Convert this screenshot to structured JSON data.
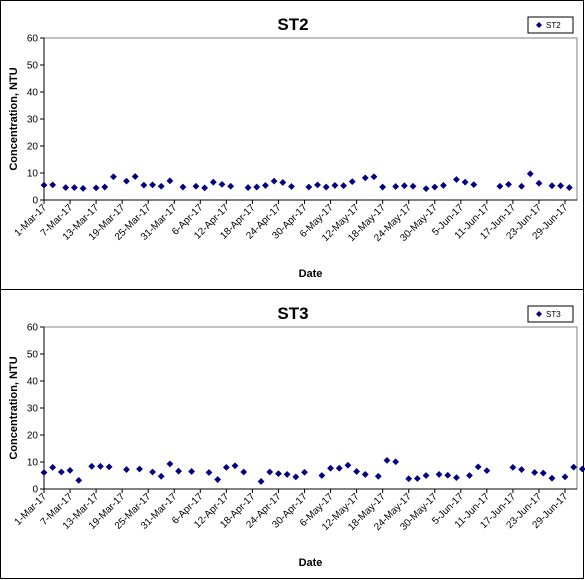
{
  "chart_data": [
    {
      "type": "scatter",
      "title": "ST2",
      "xlabel": "Date",
      "ylabel": "Concentration, NTU",
      "ylim": [
        0,
        60
      ],
      "yticks": [
        "0",
        "10",
        "20",
        "30",
        "40",
        "50",
        "60"
      ],
      "xtick_labels": [
        "1-Mar-17",
        "7-Mar-17",
        "13-Mar-17",
        "19-Mar-17",
        "25-Mar-17",
        "31-Mar-17",
        "6-Apr-17",
        "12-Apr-17",
        "18-Apr-17",
        "24-Apr-17",
        "30-Apr-17",
        "6-May-17",
        "12-May-17",
        "18-May-17",
        "24-May-17",
        "30-May-17",
        "5-Jun-17",
        "11-Jun-17",
        "17-Jun-17",
        "23-Jun-17",
        "29-Jun-17"
      ],
      "grid": false,
      "legend_position": "top-right",
      "marker_color": "#000080",
      "series": [
        {
          "name": "ST2",
          "points": [
            [
              "1-Mar-17",
              5.5
            ],
            [
              "3-Mar-17",
              5.6
            ],
            [
              "6-Mar-17",
              4.6
            ],
            [
              "8-Mar-17",
              4.6
            ],
            [
              "10-Mar-17",
              4.3
            ],
            [
              "13-Mar-17",
              4.5
            ],
            [
              "15-Mar-17",
              4.8
            ],
            [
              "17-Mar-17",
              8.6
            ],
            [
              "20-Mar-17",
              7.0
            ],
            [
              "22-Mar-17",
              8.7
            ],
            [
              "24-Mar-17",
              5.5
            ],
            [
              "26-Mar-17",
              5.6
            ],
            [
              "28-Mar-17",
              5.1
            ],
            [
              "30-Mar-17",
              7.1
            ],
            [
              "2-Apr-17",
              4.8
            ],
            [
              "5-Apr-17",
              5.1
            ],
            [
              "7-Apr-17",
              4.5
            ],
            [
              "9-Apr-17",
              6.6
            ],
            [
              "11-Apr-17",
              5.8
            ],
            [
              "13-Apr-17",
              5.1
            ],
            [
              "17-Apr-17",
              4.6
            ],
            [
              "19-Apr-17",
              4.8
            ],
            [
              "21-Apr-17",
              5.4
            ],
            [
              "23-Apr-17",
              7.0
            ],
            [
              "25-Apr-17",
              6.5
            ],
            [
              "27-Apr-17",
              5.0
            ],
            [
              "1-May-17",
              4.8
            ],
            [
              "3-May-17",
              5.6
            ],
            [
              "5-May-17",
              4.8
            ],
            [
              "7-May-17",
              5.4
            ],
            [
              "9-May-17",
              5.3
            ],
            [
              "11-May-17",
              6.8
            ],
            [
              "14-May-17",
              8.2
            ],
            [
              "16-May-17",
              8.6
            ],
            [
              "18-May-17",
              4.8
            ],
            [
              "21-May-17",
              5.0
            ],
            [
              "23-May-17",
              5.3
            ],
            [
              "25-May-17",
              5.1
            ],
            [
              "28-May-17",
              4.2
            ],
            [
              "30-May-17",
              4.8
            ],
            [
              "1-Jun-17",
              5.4
            ],
            [
              "4-Jun-17",
              7.6
            ],
            [
              "6-Jun-17",
              6.6
            ],
            [
              "8-Jun-17",
              5.7
            ],
            [
              "14-Jun-17",
              5.1
            ],
            [
              "16-Jun-17",
              5.8
            ],
            [
              "19-Jun-17",
              5.1
            ],
            [
              "21-Jun-17",
              9.7
            ],
            [
              "23-Jun-17",
              6.2
            ],
            [
              "26-Jun-17",
              5.3
            ],
            [
              "28-Jun-17",
              5.3
            ],
            [
              "30-Jun-17",
              4.6
            ]
          ]
        }
      ]
    },
    {
      "type": "scatter",
      "title": "ST3",
      "xlabel": "Date",
      "ylabel": "Concentration, NTU",
      "ylim": [
        0,
        60
      ],
      "yticks": [
        "0",
        "10",
        "20",
        "30",
        "40",
        "50",
        "60"
      ],
      "xtick_labels": [
        "1-Mar-17",
        "7-Mar-17",
        "13-Mar-17",
        "19-Mar-17",
        "25-Mar-17",
        "31-Mar-17",
        "6-Apr-17",
        "12-Apr-17",
        "18-Apr-17",
        "24-Apr-17",
        "30-Apr-17",
        "6-May-17",
        "12-May-17",
        "18-May-17",
        "24-May-17",
        "30-May-17",
        "5-Jun-17",
        "11-Jun-17",
        "17-Jun-17",
        "23-Jun-17",
        "29-Jun-17"
      ],
      "grid": false,
      "legend_position": "top-right",
      "marker_color": "#000080",
      "series": [
        {
          "name": "ST3",
          "points": [
            [
              "1-Mar-17",
              6.1
            ],
            [
              "3-Mar-17",
              8.0
            ],
            [
              "5-Mar-17",
              6.3
            ],
            [
              "7-Mar-17",
              6.9
            ],
            [
              "9-Mar-17",
              3.2
            ],
            [
              "12-Mar-17",
              8.4
            ],
            [
              "14-Mar-17",
              8.4
            ],
            [
              "16-Mar-17",
              8.2
            ],
            [
              "20-Mar-17",
              7.2
            ],
            [
              "23-Mar-17",
              7.4
            ],
            [
              "26-Mar-17",
              6.3
            ],
            [
              "28-Mar-17",
              4.7
            ],
            [
              "30-Mar-17",
              9.3
            ],
            [
              "1-Apr-17",
              6.6
            ],
            [
              "4-Apr-17",
              6.5
            ],
            [
              "8-Apr-17",
              6.1
            ],
            [
              "10-Apr-17",
              3.5
            ],
            [
              "12-Apr-17",
              8.0
            ],
            [
              "14-Apr-17",
              8.6
            ],
            [
              "16-Apr-17",
              6.3
            ],
            [
              "20-Apr-17",
              2.8
            ],
            [
              "22-Apr-17",
              6.3
            ],
            [
              "24-Apr-17",
              5.7
            ],
            [
              "26-Apr-17",
              5.4
            ],
            [
              "28-Apr-17",
              4.5
            ],
            [
              "30-Apr-17",
              6.2
            ],
            [
              "4-May-17",
              5.0
            ],
            [
              "6-May-17",
              7.7
            ],
            [
              "8-May-17",
              7.7
            ],
            [
              "10-May-17",
              8.8
            ],
            [
              "12-May-17",
              6.5
            ],
            [
              "14-May-17",
              5.4
            ],
            [
              "17-May-17",
              4.7
            ],
            [
              "19-May-17",
              10.6
            ],
            [
              "21-May-17",
              10.1
            ],
            [
              "24-May-17",
              3.8
            ],
            [
              "26-May-17",
              3.9
            ],
            [
              "28-May-17",
              5.0
            ],
            [
              "31-May-17",
              5.4
            ],
            [
              "2-Jun-17",
              5.1
            ],
            [
              "4-Jun-17",
              4.2
            ],
            [
              "7-Jun-17",
              5.0
            ],
            [
              "9-Jun-17",
              8.2
            ],
            [
              "11-Jun-17",
              6.8
            ],
            [
              "17-Jun-17",
              8.0
            ],
            [
              "19-Jun-17",
              7.2
            ],
            [
              "22-Jun-17",
              6.1
            ],
            [
              "24-Jun-17",
              5.9
            ],
            [
              "26-Jun-17",
              4.0
            ],
            [
              "29-Jun-17",
              4.5
            ],
            [
              "1-Jul-17",
              8.1
            ],
            [
              "3-Jul-17",
              7.4
            ]
          ]
        }
      ]
    }
  ]
}
